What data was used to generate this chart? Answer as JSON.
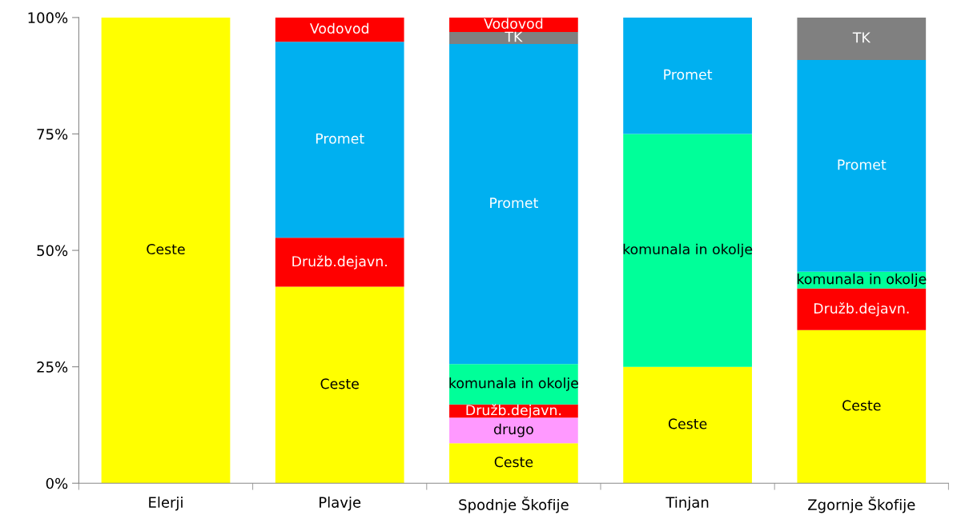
{
  "chart_data": {
    "type": "bar",
    "stacked": true,
    "categories": [
      "Elerji",
      "Plavje",
      "Spodnje Škofije",
      "Tinjan",
      "Zgornje Škofije"
    ],
    "series": [
      {
        "name": "Ceste",
        "color": "#ffff00",
        "values": [
          100,
          42.2,
          8.6,
          25,
          32.9
        ]
      },
      {
        "name": "drugo",
        "color": "#ff99ff",
        "values": [
          null,
          null,
          5.5,
          null,
          null
        ]
      },
      {
        "name": "Družb.dejavn.",
        "color": "#ff0000",
        "values": [
          null,
          10.5,
          2.8,
          null,
          8.9
        ]
      },
      {
        "name": "komunala in okolje",
        "color": "#00ff99",
        "values": [
          null,
          null,
          8.7,
          50,
          3.6
        ]
      },
      {
        "name": "Promet",
        "color": "#00b0f0",
        "values": [
          null,
          42.1,
          68.7,
          25,
          45.5
        ]
      },
      {
        "name": "TK",
        "color": "#808080",
        "values": [
          null,
          null,
          2.6,
          null,
          9.1
        ]
      },
      {
        "name": "Vodovod",
        "color": "#ff0000",
        "values": [
          null,
          5.2,
          3.1,
          null,
          null
        ]
      }
    ],
    "ylim": [
      0,
      100
    ],
    "yticks": [
      {
        "value": 0,
        "label": "0%"
      },
      {
        "value": 25,
        "label": "25%"
      },
      {
        "value": 50,
        "label": "50%"
      },
      {
        "value": 75,
        "label": "75%"
      },
      {
        "value": 100,
        "label": "100%"
      }
    ],
    "grid": false,
    "legend": false
  }
}
